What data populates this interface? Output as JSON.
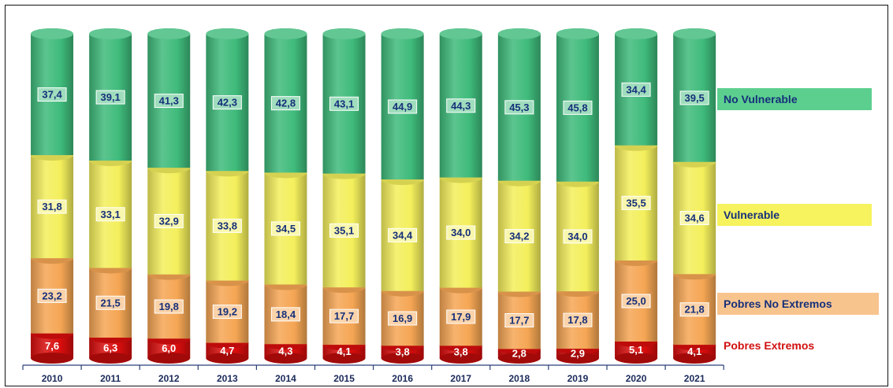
{
  "chart_data": {
    "type": "bar",
    "stacked": true,
    "percent_stacked": true,
    "categories": [
      "2010",
      "2011",
      "2012",
      "2013",
      "2014",
      "2015",
      "2016",
      "2017",
      "2018",
      "2019",
      "2020",
      "2021"
    ],
    "series": [
      {
        "name": "Pobres Extremos",
        "color": "#d80d0d",
        "values": [
          "7,6",
          "6,3",
          "6,0",
          "4,7",
          "4,3",
          "4,1",
          "3,8",
          "3,8",
          "2,8",
          "2,9",
          "5,1",
          "4,1"
        ]
      },
      {
        "name": "Pobres No Extremos",
        "color": "#f5a654",
        "values": [
          "23,2",
          "21,5",
          "19,8",
          "19,2",
          "18,4",
          "17,7",
          "16,9",
          "17,9",
          "17,7",
          "17,8",
          "25,0",
          "21,8"
        ]
      },
      {
        "name": "Vulnerable",
        "color": "#f3ef5c",
        "values": [
          "31,8",
          "33,1",
          "32,9",
          "33,8",
          "34,5",
          "35,1",
          "34,4",
          "34,0",
          "34,2",
          "34,0",
          "35,5",
          "34,6"
        ]
      },
      {
        "name": "No Vulnerable",
        "color": "#3fbb7b",
        "values": [
          "37,4",
          "39,1",
          "41,3",
          "42,3",
          "42,8",
          "43,1",
          "44,9",
          "44,3",
          "45,3",
          "45,8",
          "34,4",
          "39,5"
        ]
      }
    ],
    "legend_placement": "right",
    "grid": false
  },
  "legend": {
    "no_vulnerable": {
      "label": "No Vulnerable",
      "bg": "#5ccf8f",
      "text_color": "#16307a"
    },
    "vulnerable": {
      "label": "Vulnerable",
      "bg": "#f6f35e",
      "text_color": "#16307a"
    },
    "pobres_no_extremos": {
      "label": "Pobres No Extremos",
      "bg": "#f8c48e",
      "text_color": "#16307a"
    },
    "pobres_extremos": {
      "label": "Pobres Extremos",
      "bg": "#ffffff",
      "text_color": "#d11010"
    }
  },
  "colors": {
    "label_text": "#16307a",
    "extreme_label_text": "#ffffff",
    "axis": "#2a3f7a"
  }
}
